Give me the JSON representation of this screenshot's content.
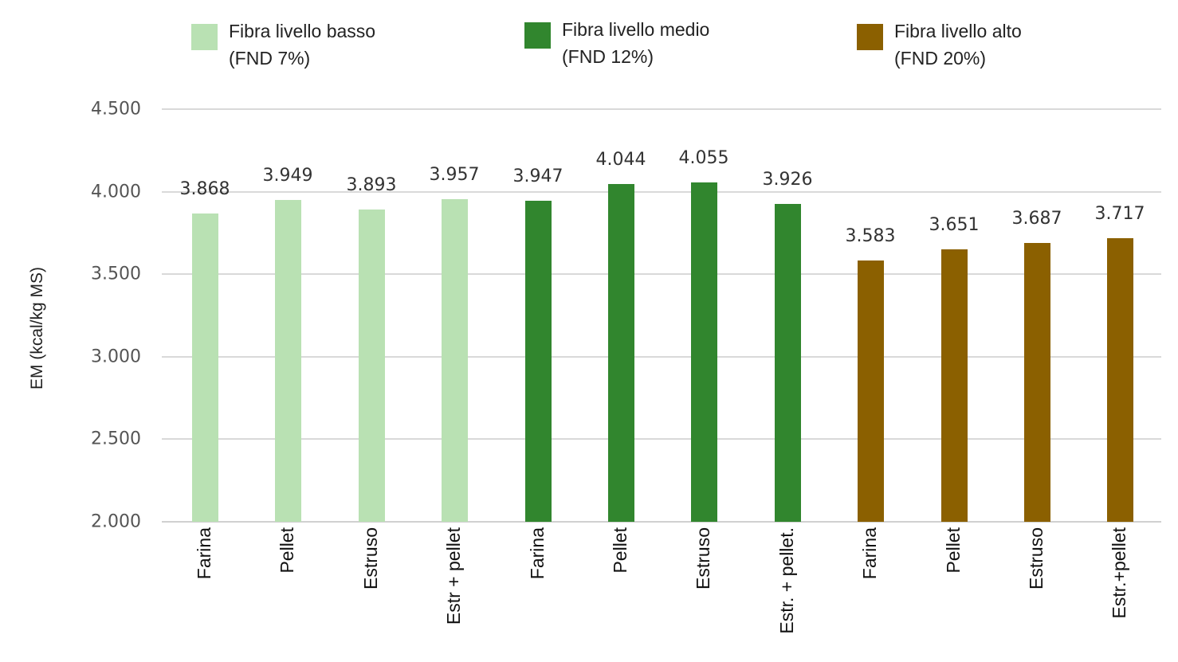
{
  "legend": [
    {
      "line1": "Fibra livello basso",
      "line2": "(FND 7%)",
      "color": "#b9e1b3"
    },
    {
      "line1": "Fibra livello medio",
      "line2": "(FND 12%)",
      "color": "#31862e"
    },
    {
      "line1": "Fibra livello alto",
      "line2": "(FND 20%)",
      "color": "#8b6000"
    }
  ],
  "y_axis": {
    "label": "EM (kcal/kg MS)",
    "ticks": [
      "4.500",
      "4.000",
      "3.500",
      "3.000",
      "2.500",
      "2.000"
    ]
  },
  "bars": [
    {
      "category": "Farina",
      "value_label": "3.868"
    },
    {
      "category": "Pellet",
      "value_label": "3.949"
    },
    {
      "category": "Estruso",
      "value_label": "3.893"
    },
    {
      "category": "Estr + pellet",
      "value_label": "3.957"
    },
    {
      "category": "Farina",
      "value_label": "3.947"
    },
    {
      "category": "Pellet",
      "value_label": "4.044"
    },
    {
      "category": "Estruso",
      "value_label": "4.055"
    },
    {
      "category": "Estr. + pellet.",
      "value_label": "3.926"
    },
    {
      "category": "Farina",
      "value_label": "3.583"
    },
    {
      "category": "Pellet",
      "value_label": "3.651"
    },
    {
      "category": "Estruso",
      "value_label": "3.687"
    },
    {
      "category": "Estr.+pellet",
      "value_label": "3.717"
    }
  ],
  "chart_data": {
    "type": "bar",
    "title": "",
    "xlabel": "",
    "ylabel": "EM (kcal/kg MS)",
    "ylim": [
      2000,
      4500
    ],
    "yticks": [
      2000,
      2500,
      3000,
      3500,
      4000,
      4500
    ],
    "grid": true,
    "legend_position": "top",
    "categories": [
      "Farina",
      "Pellet",
      "Estruso",
      "Estr + pellet",
      "Farina",
      "Pellet",
      "Estruso",
      "Estr. + pellet.",
      "Farina",
      "Pellet",
      "Estruso",
      "Estr.+pellet"
    ],
    "series": [
      {
        "name": "Fibra livello basso (FND 7%)",
        "color": "#b9e1b3",
        "values": [
          3868,
          3949,
          3893,
          3957,
          null,
          null,
          null,
          null,
          null,
          null,
          null,
          null
        ]
      },
      {
        "name": "Fibra livello medio (FND 12%)",
        "color": "#31862e",
        "values": [
          null,
          null,
          null,
          null,
          3947,
          4044,
          4055,
          3926,
          null,
          null,
          null,
          null
        ]
      },
      {
        "name": "Fibra livello alto (FND 20%)",
        "color": "#8b6000",
        "values": [
          null,
          null,
          null,
          null,
          null,
          null,
          null,
          null,
          3583,
          3651,
          3687,
          3717
        ]
      }
    ]
  }
}
